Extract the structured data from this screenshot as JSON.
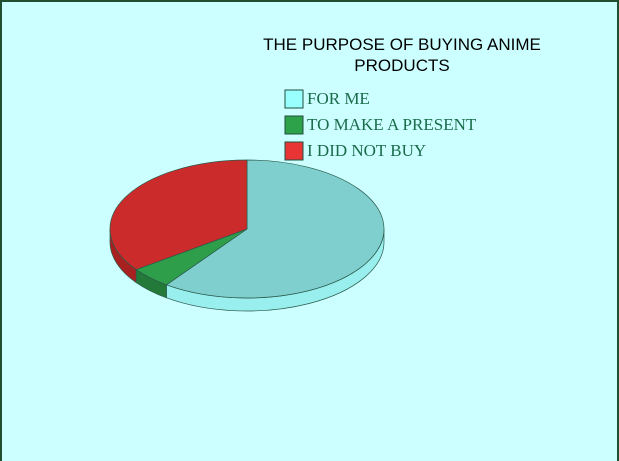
{
  "chart_data": {
    "type": "pie3d",
    "title": "THE PURPOSE OF BUYING ANIME PRODUCTS",
    "categories": [
      "FOR ME",
      "TO MAKE A PRESENT",
      "I DID NOT BUY"
    ],
    "values": [
      60,
      5,
      35
    ],
    "colors": [
      "#7fcfcf",
      "#2e9e4a",
      "#cc2b2b"
    ],
    "side_colors": [
      "#99eeee",
      "#237a38",
      "#a82020"
    ],
    "legend_colors": [
      "#99ffff",
      "#2ea24a",
      "#e83434"
    ]
  }
}
